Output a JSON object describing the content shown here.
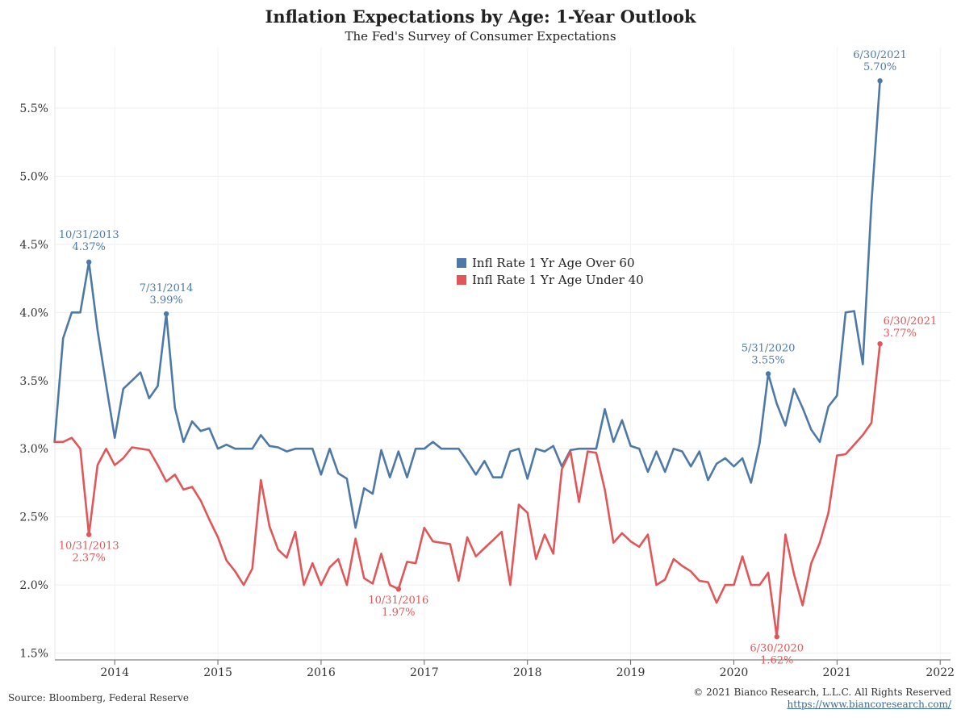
{
  "header": {
    "title": "Inflation Expectations by Age: 1-Year Outlook",
    "subtitle": "The Fed's Survey of Consumer Expectations"
  },
  "footer": {
    "source": "Source: Bloomberg, Federal Reserve",
    "copyright": "© 2021 Bianco Research, L.L.C. All Rights Reserved",
    "url": "https://www.biancoresearch.com/"
  },
  "chart_data": {
    "type": "line",
    "title": "Inflation Expectations by Age: 1-Year Outlook",
    "subtitle": "The Fed's Survey of Consumer Expectations",
    "xlabel": "",
    "ylabel": "",
    "x_start": "2013-06-30",
    "x_frequency": "monthly",
    "xlim": [
      2013.42,
      2022.1
    ],
    "ylim": [
      1.45,
      5.95
    ],
    "x_ticks": [
      "2014",
      "2015",
      "2016",
      "2017",
      "2018",
      "2019",
      "2020",
      "2021",
      "2022"
    ],
    "y_ticks": [
      "1.5%",
      "2.0%",
      "2.5%",
      "3.0%",
      "3.5%",
      "4.0%",
      "4.5%",
      "5.0%",
      "5.5%"
    ],
    "y_tick_values": [
      1.5,
      2.0,
      2.5,
      3.0,
      3.5,
      4.0,
      4.5,
      5.0,
      5.5
    ],
    "grid": true,
    "legend_placement": "center",
    "series": [
      {
        "name": "Infl Rate 1 Yr Age Over 60",
        "color": "#4e79a7",
        "values": [
          3.05,
          3.81,
          4.0,
          4.0,
          4.37,
          3.87,
          3.47,
          3.08,
          3.44,
          3.5,
          3.56,
          3.37,
          3.46,
          3.99,
          3.3,
          3.05,
          3.2,
          3.13,
          3.15,
          3.0,
          3.03,
          3.0,
          3.0,
          3.0,
          3.1,
          3.02,
          3.01,
          2.98,
          3.0,
          3.0,
          3.0,
          2.81,
          3.0,
          2.82,
          2.78,
          2.42,
          2.71,
          2.67,
          2.99,
          2.79,
          2.98,
          2.79,
          3.0,
          3.0,
          3.05,
          3.0,
          3.0,
          3.0,
          2.91,
          2.81,
          2.91,
          2.79,
          2.79,
          2.98,
          3.0,
          2.78,
          3.0,
          2.98,
          3.02,
          2.87,
          2.99,
          3.0,
          3.0,
          3.0,
          3.29,
          3.05,
          3.21,
          3.02,
          3.0,
          2.83,
          2.98,
          2.83,
          3.0,
          2.98,
          2.87,
          2.98,
          2.77,
          2.89,
          2.93,
          2.87,
          2.93,
          2.75,
          3.04,
          3.55,
          3.33,
          3.17,
          3.44,
          3.3,
          3.14,
          3.05,
          3.31,
          3.39,
          4.0,
          4.01,
          3.62,
          4.8,
          5.7
        ]
      },
      {
        "name": "Infl Rate 1 Yr Age Under 40",
        "color": "#e15759",
        "values": [
          3.05,
          3.05,
          3.08,
          3.0,
          2.37,
          2.88,
          3.0,
          2.88,
          2.93,
          3.01,
          3.0,
          2.99,
          2.88,
          2.76,
          2.81,
          2.7,
          2.72,
          2.62,
          2.48,
          2.35,
          2.18,
          2.1,
          2.0,
          2.12,
          2.77,
          2.43,
          2.26,
          2.2,
          2.39,
          2.0,
          2.16,
          2.0,
          2.13,
          2.19,
          2.0,
          2.34,
          2.05,
          2.01,
          2.23,
          2.0,
          1.97,
          2.17,
          2.16,
          2.42,
          2.32,
          2.31,
          2.3,
          2.03,
          2.35,
          2.21,
          2.27,
          2.33,
          2.39,
          2.0,
          2.59,
          2.53,
          2.19,
          2.37,
          2.23,
          2.85,
          2.98,
          2.61,
          2.98,
          2.97,
          2.7,
          2.31,
          2.38,
          2.32,
          2.28,
          2.37,
          2.0,
          2.04,
          2.19,
          2.14,
          2.1,
          2.03,
          2.02,
          1.87,
          2.0,
          2.0,
          2.21,
          2.0,
          2.0,
          2.09,
          1.62,
          2.37,
          2.08,
          1.85,
          2.16,
          2.31,
          2.53,
          2.95,
          2.96,
          3.03,
          3.1,
          3.19,
          3.77
        ]
      }
    ],
    "annotations": [
      {
        "series": 0,
        "date": "10/31/2013",
        "value": 4.37,
        "date_label": "10/31/2013",
        "value_label": "4.37%"
      },
      {
        "series": 0,
        "date": "7/31/2014",
        "value": 3.99,
        "date_label": "7/31/2014",
        "value_label": "3.99%"
      },
      {
        "series": 0,
        "date": "5/31/2020",
        "value": 3.55,
        "date_label": "5/31/2020",
        "value_label": "3.55%"
      },
      {
        "series": 0,
        "date": "6/30/2021",
        "value": 5.7,
        "date_label": "6/30/2021",
        "value_label": "5.70%"
      },
      {
        "series": 1,
        "date": "10/31/2013",
        "value": 2.37,
        "date_label": "10/31/2013",
        "value_label": "2.37%"
      },
      {
        "series": 1,
        "date": "10/31/2016",
        "value": 1.97,
        "date_label": "10/31/2016",
        "value_label": "1.97%"
      },
      {
        "series": 1,
        "date": "6/30/2020",
        "value": 1.62,
        "date_label": "6/30/2020",
        "value_label": "1.62%"
      },
      {
        "series": 1,
        "date": "6/30/2021",
        "value": 3.77,
        "date_label": "6/30/2021",
        "value_label": "3.77%"
      }
    ]
  }
}
